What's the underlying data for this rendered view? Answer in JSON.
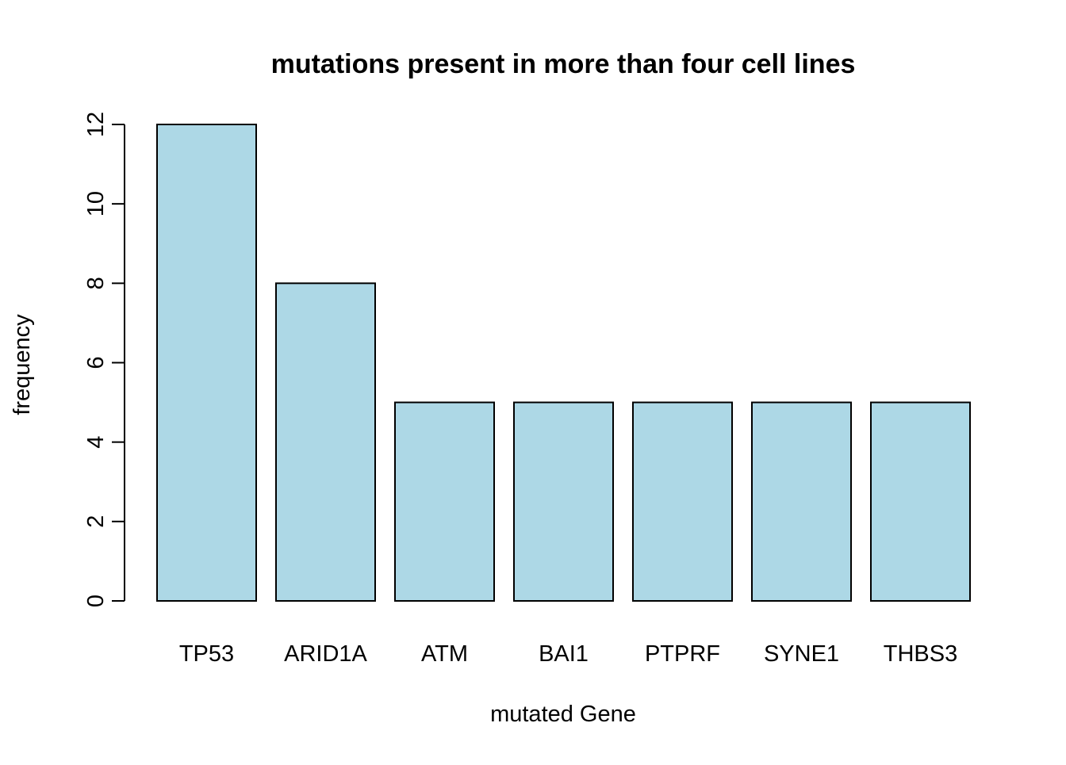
{
  "chart_data": {
    "type": "bar",
    "title": "mutations present in more than four cell lines",
    "xlabel": "mutated Gene",
    "ylabel": "frequency",
    "categories": [
      "TP53",
      "ARID1A",
      "ATM",
      "BAI1",
      "PTPRF",
      "SYNE1",
      "THBS3"
    ],
    "values": [
      12,
      8,
      5,
      5,
      5,
      5,
      5
    ],
    "ylim": [
      0,
      12
    ],
    "yticks": [
      0,
      2,
      4,
      6,
      8,
      10,
      12
    ],
    "grid": false,
    "legend": "none",
    "colors": {
      "bar_fill": "#ADD8E6",
      "bar_stroke": "#000000",
      "axis": "#000000",
      "text": "#000000"
    }
  }
}
